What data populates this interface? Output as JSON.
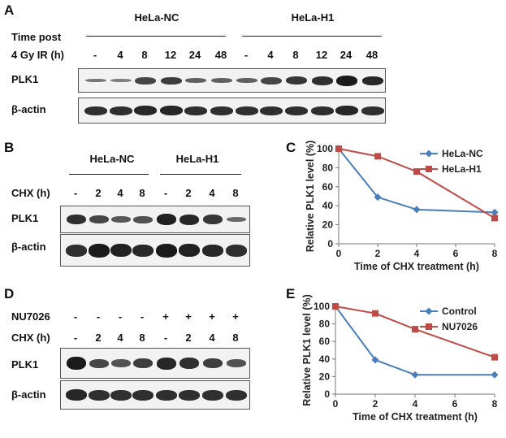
{
  "panelA": {
    "letter": "A",
    "groups": [
      "HeLa-NC",
      "HeLa-H1"
    ],
    "row_label_1": "Time post",
    "row_label_2": "4 Gy IR (h)",
    "lanes": [
      "-",
      "4",
      "8",
      "12",
      "24",
      "48",
      "-",
      "4",
      "8",
      "12",
      "24",
      "48"
    ],
    "blot_labels": [
      "PLK1",
      "β-actin"
    ],
    "plk1_intensity": [
      0.35,
      0.3,
      0.7,
      0.75,
      0.5,
      0.5,
      0.5,
      0.7,
      0.8,
      0.85,
      1.0,
      0.9
    ],
    "actin_intensity": [
      0.85,
      0.85,
      0.9,
      0.9,
      0.85,
      0.85,
      0.85,
      0.85,
      0.85,
      0.85,
      0.9,
      0.85
    ]
  },
  "panelB": {
    "letter": "B",
    "groups": [
      "HeLa-NC",
      "HeLa-H1"
    ],
    "row_label": "CHX  (h)",
    "lanes": [
      "-",
      "2",
      "4",
      "8",
      "-",
      "2",
      "4",
      "8"
    ],
    "blot_labels": [
      "PLK1",
      "β-actin"
    ],
    "plk1_intensity": [
      0.85,
      0.7,
      0.55,
      0.6,
      0.95,
      0.9,
      0.8,
      0.45
    ],
    "actin_intensity": [
      0.85,
      1.0,
      0.95,
      0.9,
      1.0,
      0.95,
      0.9,
      0.85
    ]
  },
  "panelD": {
    "letter": "D",
    "row1_label": "NU7026",
    "row1_values": [
      "-",
      "-",
      "-",
      "-",
      "+",
      "+",
      "+",
      "+"
    ],
    "row2_label": "CHX  (h)",
    "lanes": [
      "-",
      "2",
      "4",
      "8",
      "-",
      "2",
      "4",
      "8"
    ],
    "blot_labels": [
      "PLK1",
      "β-actin"
    ],
    "plk1_intensity": [
      1.0,
      0.7,
      0.6,
      0.75,
      0.9,
      0.85,
      0.75,
      0.6
    ],
    "actin_intensity": [
      0.9,
      0.85,
      0.85,
      0.85,
      0.85,
      0.85,
      0.85,
      0.85
    ]
  },
  "chart_data": [
    {
      "panel": "C",
      "type": "line",
      "xlabel": "Time of CHX treatment (h)",
      "ylabel": "Relative PLK1 level (%)",
      "xlim": [
        0,
        8
      ],
      "ylim": [
        0,
        100
      ],
      "xticks": [
        0,
        2,
        4,
        6,
        8
      ],
      "yticks": [
        0,
        20,
        40,
        60,
        80,
        100
      ],
      "grid": false,
      "legend": "top-right",
      "x": [
        0,
        2,
        4,
        8
      ],
      "series": [
        {
          "name": "HeLa-NC",
          "color": "#4a7ebb",
          "marker": "diamond",
          "values": [
            100,
            49,
            36,
            33
          ]
        },
        {
          "name": "HeLa-H1",
          "color": "#be4b48",
          "marker": "square",
          "values": [
            100,
            92,
            76,
            27
          ]
        }
      ]
    },
    {
      "panel": "E",
      "type": "line",
      "xlabel": "Time of CHX treatment (h)",
      "ylabel": "Relative PLK1 level (%)",
      "xlim": [
        0,
        8
      ],
      "ylim": [
        0,
        100
      ],
      "xticks": [
        0,
        2,
        4,
        6,
        8
      ],
      "yticks": [
        0,
        20,
        40,
        60,
        80,
        100
      ],
      "grid": false,
      "legend": "top-right",
      "x": [
        0,
        2,
        4,
        8
      ],
      "series": [
        {
          "name": "Control",
          "color": "#4a7ebb",
          "marker": "diamond",
          "values": [
            100,
            39,
            22,
            22
          ]
        },
        {
          "name": "NU7026",
          "color": "#be4b48",
          "marker": "square",
          "values": [
            100,
            92,
            74,
            42
          ]
        }
      ]
    }
  ]
}
